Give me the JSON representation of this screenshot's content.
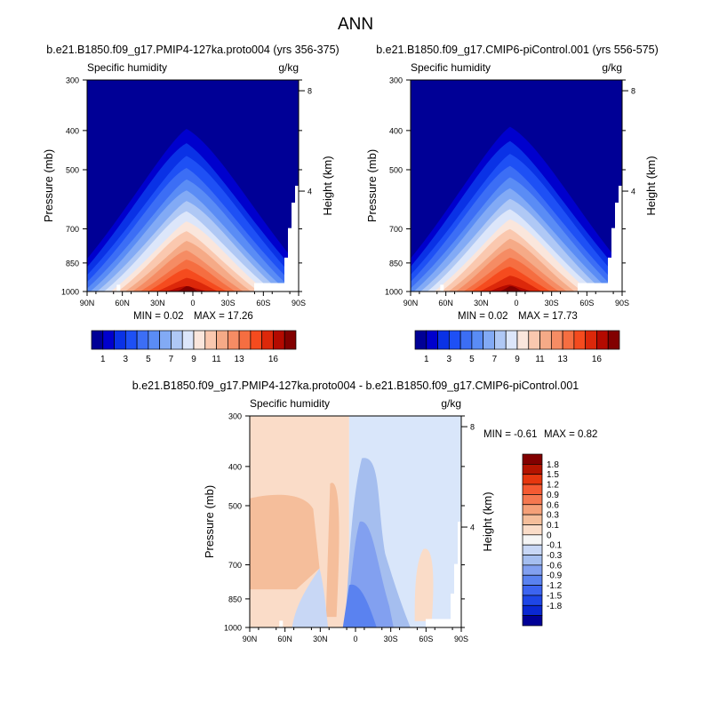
{
  "page_title": "ANN",
  "colorbar_top": {
    "colors": [
      "#000096",
      "#0000cd",
      "#0a32e6",
      "#1e50f5",
      "#3c6ef5",
      "#5a8cf5",
      "#82aaf5",
      "#afc8f5",
      "#dce6fa",
      "#fae6dc",
      "#fac8af",
      "#f5aa87",
      "#f58c64",
      "#f56e41",
      "#f54b1e",
      "#dc280a",
      "#b40a00",
      "#820000"
    ],
    "labels": [
      "1",
      "3",
      "5",
      "7",
      "9",
      "11",
      "13",
      "16"
    ]
  },
  "colorbar_diff": {
    "colors": [
      "#000096",
      "#0a28d2",
      "#1e46e6",
      "#3c64f0",
      "#5a82f0",
      "#82a0f0",
      "#a5beef",
      "#c8d7f5",
      "#f5f5f5",
      "#fadcc8",
      "#f5be9b",
      "#f5a078",
      "#f57850",
      "#f55a32",
      "#e6370f",
      "#b41400",
      "#820000"
    ],
    "labels": [
      "1.8",
      "1.5",
      "1.2",
      "0.9",
      "0.6",
      "0.3",
      "0.1",
      "0",
      "-0.1",
      "-0.3",
      "-0.6",
      "-0.9",
      "-1.2",
      "-1.5",
      "-1.8"
    ]
  },
  "chart_data": [
    {
      "type": "contour",
      "title": "b.e21.B1850.f09_g17.PMIP4-127ka.proto004 (yrs 356-375)",
      "left_label": "Specific humidity",
      "right_label": "g/kg",
      "xlabel": "",
      "ylabel": "Pressure (mb)",
      "ylabel_right": "Height (km)",
      "x_ticks": [
        "90N",
        "60N",
        "30N",
        "0",
        "30S",
        "60S",
        "90S"
      ],
      "y_ticks": [
        "300",
        "400",
        "500",
        "700",
        "850",
        "1000"
      ],
      "y_right_ticks": [
        "8",
        "4"
      ],
      "min_text": "MIN =  0.02",
      "max_text": "MAX =  17.26",
      "min": 0.02,
      "max": 17.26
    },
    {
      "type": "contour",
      "title": "b.e21.B1850.f09_g17.CMIP6-piControl.001 (yrs 556-575)",
      "left_label": "Specific humidity",
      "right_label": "g/kg",
      "xlabel": "",
      "ylabel": "Pressure (mb)",
      "ylabel_right": "Height (km)",
      "x_ticks": [
        "90N",
        "60N",
        "30N",
        "0",
        "30S",
        "60S",
        "90S"
      ],
      "y_ticks": [
        "300",
        "400",
        "500",
        "700",
        "850",
        "1000"
      ],
      "y_right_ticks": [
        "8",
        "4"
      ],
      "min_text": "MIN =  0.02",
      "max_text": "MAX =  17.73",
      "min": 0.02,
      "max": 17.73
    },
    {
      "type": "contour",
      "title": "b.e21.B1850.f09_g17.PMIP4-127ka.proto004 - b.e21.B1850.f09_g17.CMIP6-piControl.001",
      "left_label": "Specific humidity",
      "right_label": "g/kg",
      "xlabel": "",
      "ylabel": "Pressure (mb)",
      "ylabel_right": "Height (km)",
      "x_ticks": [
        "90N",
        "60N",
        "30N",
        "0",
        "30S",
        "60S",
        "90S"
      ],
      "y_ticks": [
        "300",
        "400",
        "500",
        "700",
        "850",
        "1000"
      ],
      "y_right_ticks": [
        "8",
        "4"
      ],
      "min_text": "MIN =  -0.61",
      "max_text": "MAX =   0.82",
      "min": -0.61,
      "max": 0.82
    }
  ]
}
